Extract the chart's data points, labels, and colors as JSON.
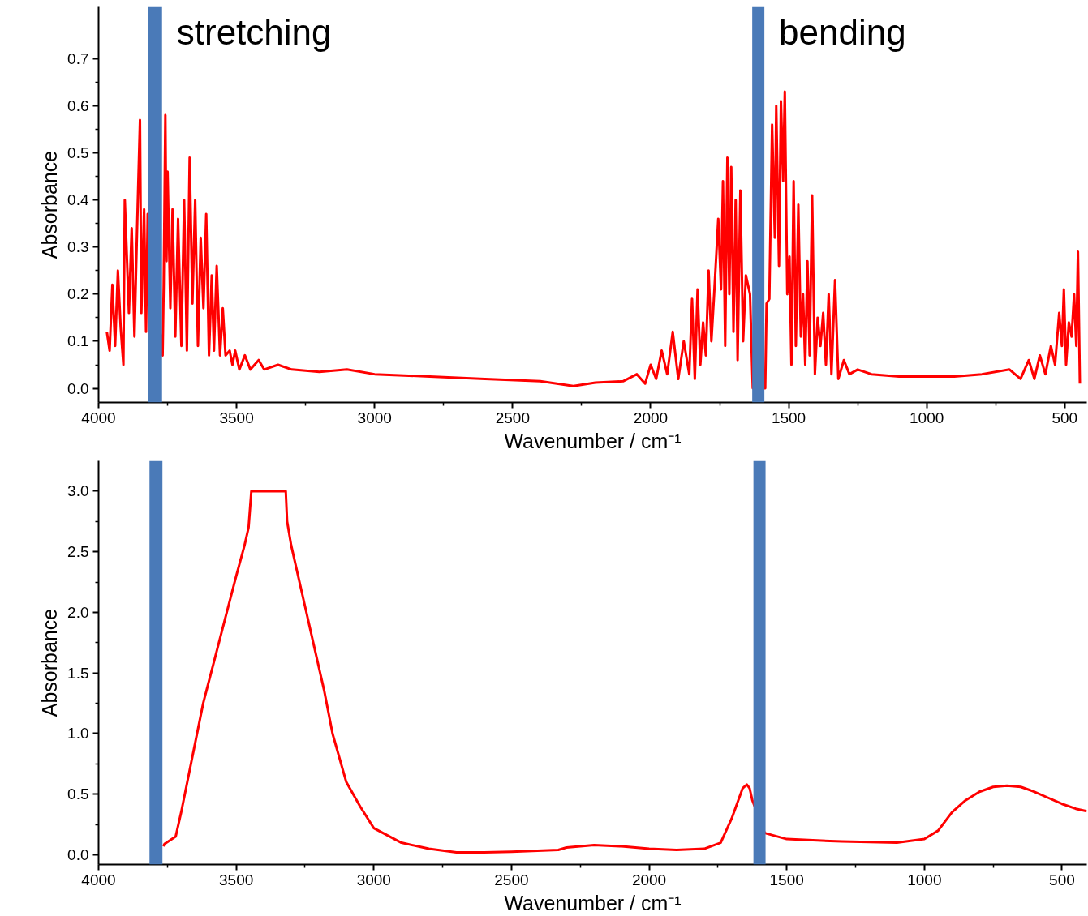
{
  "chart_data": [
    {
      "type": "line",
      "xlabel": "Wavenumber / cm⁻¹",
      "ylabel": "Absorbance",
      "xlim": [
        4000,
        420
      ],
      "ylim": [
        -0.03,
        0.81
      ],
      "xticks": [
        4000,
        3500,
        3000,
        2500,
        2000,
        1500,
        1000,
        500
      ],
      "yticks": [
        {
          "value": 0,
          "label": "0.0"
        },
        {
          "value": 0.1,
          "label": "0.1"
        },
        {
          "value": 0.2,
          "label": "0.2"
        },
        {
          "value": 0.3,
          "label": "0.3"
        },
        {
          "value": 0.4,
          "label": "0.4"
        },
        {
          "value": 0.5,
          "label": "0.5"
        },
        {
          "value": 0.6,
          "label": "0.6"
        },
        {
          "value": 0.7,
          "label": "0.7"
        }
      ],
      "grid": false,
      "line_style": "solid",
      "bands": [
        {
          "axis": "x",
          "from": 3820,
          "to": 3770,
          "label": "stretching",
          "color": "#4a7ab8"
        },
        {
          "axis": "x",
          "from": 1632,
          "to": 1588,
          "label": "bending",
          "color": "#4a7ab8"
        }
      ],
      "series": [
        {
          "color": "#ff0000",
          "x": [
            3970,
            3960,
            3950,
            3940,
            3930,
            3920,
            3910,
            3905,
            3890,
            3880,
            3870,
            3860,
            3850,
            3845,
            3835,
            3828,
            3822,
            3768,
            3764,
            3758,
            3754,
            3750,
            3740,
            3732,
            3722,
            3712,
            3700,
            3690,
            3680,
            3670,
            3660,
            3650,
            3640,
            3630,
            3620,
            3610,
            3600,
            3590,
            3582,
            3572,
            3560,
            3550,
            3540,
            3525,
            3515,
            3505,
            3490,
            3470,
            3450,
            3420,
            3400,
            3350,
            3300,
            3200,
            3100,
            3000,
            2800,
            2600,
            2400,
            2280,
            2200,
            2100,
            2050,
            2020,
            2000,
            1980,
            1960,
            1940,
            1920,
            1900,
            1880,
            1860,
            1850,
            1840,
            1830,
            1820,
            1810,
            1800,
            1790,
            1780,
            1770,
            1755,
            1745,
            1738,
            1730,
            1722,
            1715,
            1708,
            1700,
            1692,
            1685,
            1675,
            1665,
            1655,
            1640,
            1630,
            1585,
            1580,
            1570,
            1560,
            1550,
            1545,
            1535,
            1528,
            1520,
            1514,
            1505,
            1497,
            1490,
            1482,
            1474,
            1465,
            1456,
            1448,
            1440,
            1432,
            1424,
            1415,
            1405,
            1395,
            1385,
            1375,
            1365,
            1355,
            1345,
            1332,
            1320,
            1300,
            1280,
            1250,
            1200,
            1100,
            1000,
            900,
            800,
            700,
            660,
            630,
            610,
            590,
            570,
            550,
            535,
            520,
            510,
            503,
            495,
            485,
            475,
            466,
            458,
            452,
            445
          ],
          "values": [
            0.12,
            0.08,
            0.22,
            0.09,
            0.25,
            0.13,
            0.05,
            0.4,
            0.16,
            0.34,
            0.11,
            0.35,
            0.57,
            0.16,
            0.38,
            0.12,
            0.37,
            0.07,
            0.22,
            0.58,
            0.27,
            0.46,
            0.17,
            0.38,
            0.11,
            0.36,
            0.09,
            0.4,
            0.08,
            0.49,
            0.18,
            0.4,
            0.09,
            0.32,
            0.17,
            0.37,
            0.07,
            0.24,
            0.08,
            0.26,
            0.07,
            0.17,
            0.07,
            0.08,
            0.05,
            0.08,
            0.04,
            0.07,
            0.04,
            0.06,
            0.04,
            0.05,
            0.04,
            0.035,
            0.04,
            0.03,
            0.025,
            0.02,
            0.015,
            0.005,
            0.012,
            0.015,
            0.03,
            0.01,
            0.05,
            0.02,
            0.08,
            0.03,
            0.12,
            0.02,
            0.1,
            0.03,
            0.19,
            0.02,
            0.21,
            0.05,
            0.14,
            0.07,
            0.25,
            0.1,
            0.2,
            0.36,
            0.21,
            0.44,
            0.09,
            0.49,
            0.2,
            0.47,
            0.12,
            0.4,
            0.06,
            0.42,
            0.1,
            0.24,
            0.2,
            0.0,
            0.0,
            0.18,
            0.19,
            0.56,
            0.32,
            0.6,
            0.26,
            0.61,
            0.44,
            0.63,
            0.2,
            0.28,
            0.05,
            0.44,
            0.09,
            0.39,
            0.11,
            0.2,
            0.05,
            0.27,
            0.07,
            0.41,
            0.03,
            0.15,
            0.09,
            0.16,
            0.05,
            0.2,
            0.03,
            0.23,
            0.02,
            0.06,
            0.03,
            0.04,
            0.03,
            0.025,
            0.025,
            0.025,
            0.03,
            0.04,
            0.02,
            0.06,
            0.02,
            0.07,
            0.03,
            0.09,
            0.05,
            0.16,
            0.09,
            0.21,
            0.05,
            0.14,
            0.11,
            0.2,
            0.09,
            0.29,
            0.01
          ]
        }
      ]
    },
    {
      "type": "line",
      "xlabel": "Wavenumber / cm⁻¹",
      "ylabel": "Absorbance",
      "xlim": [
        4000,
        410
      ],
      "ylim": [
        -0.08,
        3.25
      ],
      "xticks": [
        4000,
        3500,
        3000,
        2500,
        2000,
        1500,
        1000,
        500
      ],
      "yticks": [
        {
          "value": 0,
          "label": "0.0"
        },
        {
          "value": 0.5,
          "label": "0.5"
        },
        {
          "value": 1,
          "label": "1.0"
        },
        {
          "value": 1.5,
          "label": "1.5"
        },
        {
          "value": 2,
          "label": "2.0"
        },
        {
          "value": 2.5,
          "label": "2.5"
        },
        {
          "value": 3,
          "label": "3.0"
        }
      ],
      "grid": false,
      "line_style": "solid",
      "bands": [
        {
          "axis": "x",
          "from": 3815,
          "to": 3768,
          "color": "#4a7ab8"
        },
        {
          "axis": "x",
          "from": 1621,
          "to": 1577,
          "color": "#4a7ab8"
        }
      ],
      "series": [
        {
          "color": "#ff0000",
          "x": [
            3765,
            3760,
            3720,
            3700,
            3660,
            3620,
            3580,
            3540,
            3500,
            3470,
            3455,
            3445,
            3320,
            3315,
            3300,
            3280,
            3250,
            3220,
            3180,
            3150,
            3100,
            3050,
            3000,
            2900,
            2800,
            2700,
            2600,
            2500,
            2330,
            2300,
            2200,
            2100,
            2000,
            1900,
            1800,
            1740,
            1700,
            1660,
            1645,
            1635,
            1625,
            1580,
            1500,
            1300,
            1100,
            1000,
            950,
            900,
            850,
            800,
            750,
            700,
            650,
            600,
            550,
            500,
            450,
            410
          ],
          "values": [
            0.07,
            0.09,
            0.15,
            0.35,
            0.8,
            1.25,
            1.6,
            1.95,
            2.3,
            2.55,
            2.7,
            3.0,
            3.0,
            2.75,
            2.55,
            2.35,
            2.05,
            1.75,
            1.35,
            1.0,
            0.6,
            0.4,
            0.22,
            0.1,
            0.05,
            0.02,
            0.02,
            0.025,
            0.04,
            0.06,
            0.08,
            0.07,
            0.05,
            0.04,
            0.05,
            0.1,
            0.3,
            0.55,
            0.58,
            0.55,
            0.45,
            0.18,
            0.13,
            0.11,
            0.1,
            0.13,
            0.2,
            0.35,
            0.45,
            0.52,
            0.56,
            0.57,
            0.56,
            0.52,
            0.47,
            0.42,
            0.38,
            0.36
          ]
        }
      ]
    }
  ]
}
